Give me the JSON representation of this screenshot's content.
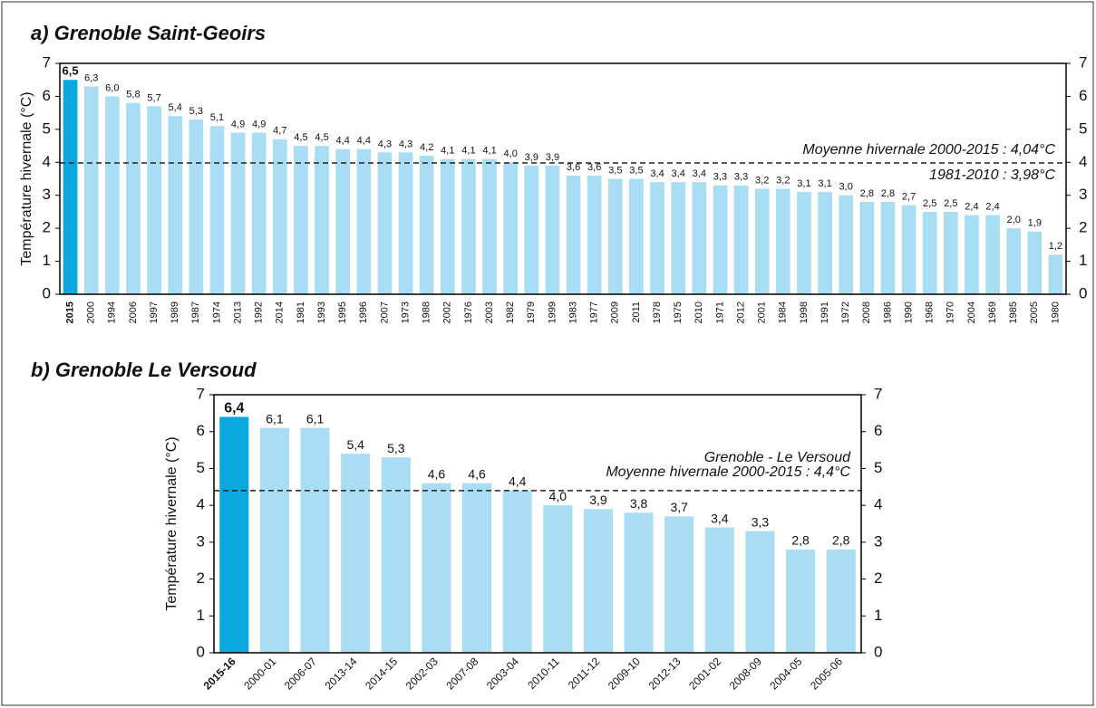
{
  "chart_data": [
    {
      "type": "bar",
      "title": "a) Grenoble Saint-Geoirs",
      "y_label": "Température hivernale (°C)",
      "categories": [
        "2015",
        "2000",
        "1994",
        "2006",
        "1997",
        "1989",
        "1987",
        "1974",
        "2013",
        "1992",
        "2014",
        "1981",
        "1993",
        "1995",
        "1996",
        "2007",
        "1973",
        "1988",
        "2002",
        "1976",
        "2003",
        "1982",
        "1979",
        "1999",
        "1983",
        "1977",
        "2009",
        "2011",
        "1978",
        "1975",
        "2010",
        "1971",
        "2012",
        "2001",
        "1984",
        "1998",
        "1991",
        "1972",
        "2008",
        "1986",
        "1990",
        "1968",
        "1970",
        "2004",
        "1969",
        "1985",
        "2005",
        "1980"
      ],
      "values": [
        6.5,
        6.3,
        6.0,
        5.8,
        5.7,
        5.4,
        5.3,
        5.1,
        4.9,
        4.9,
        4.7,
        4.5,
        4.5,
        4.4,
        4.4,
        4.3,
        4.3,
        4.2,
        4.1,
        4.1,
        4.1,
        4.0,
        3.9,
        3.9,
        3.6,
        3.6,
        3.5,
        3.5,
        3.4,
        3.4,
        3.4,
        3.3,
        3.3,
        3.2,
        3.2,
        3.1,
        3.1,
        3.0,
        2.8,
        2.8,
        2.7,
        2.5,
        2.5,
        2.4,
        2.4,
        2.0,
        1.9,
        1.2
      ],
      "value_labels": [
        "6,5",
        "6,3",
        "6,0",
        "5,8",
        "5,7",
        "5,4",
        "5,3",
        "5,1",
        "4,9",
        "4,9",
        "4,7",
        "4,5",
        "4,5",
        "4,4",
        "4,4",
        "4,3",
        "4,3",
        "4,2",
        "4,1",
        "4,1",
        "4,1",
        "4,0",
        "3,9",
        "3,9",
        "3,6",
        "3,6",
        "3,5",
        "3,5",
        "3,4",
        "3,4",
        "3,4",
        "3,3",
        "3,3",
        "3,2",
        "3,2",
        "3,1",
        "3,1",
        "3,0",
        "2,8",
        "2,8",
        "2,7",
        "2,5",
        "2,5",
        "2,4",
        "2,4",
        "2,0",
        "1,9",
        "1,2"
      ],
      "color": "#a9ddf3",
      "highlight_color": "#0aa7e1",
      "ylim": [
        0,
        7
      ],
      "yticks": [
        0,
        1,
        2,
        3,
        4,
        5,
        6,
        7
      ],
      "reference_line": 3.98,
      "annotations": [
        "Moyenne hivernale 2000-2015 : 4,04°C",
        "1981-2010 : 3,98°C"
      ]
    },
    {
      "type": "bar",
      "title": "b) Grenoble Le Versoud",
      "y_label": "Température hivernale (°C)",
      "categories": [
        "2015-16",
        "2000-01",
        "2006-07",
        "2013-14",
        "2014-15",
        "2002-03",
        "2007-08",
        "2003-04",
        "2010-11",
        "2011-12",
        "2009-10",
        "2012-13",
        "2001-02",
        "2008-09",
        "2004-05",
        "2005-06"
      ],
      "values": [
        6.4,
        6.1,
        6.1,
        5.4,
        5.3,
        4.6,
        4.6,
        4.4,
        4.0,
        3.9,
        3.8,
        3.7,
        3.4,
        3.3,
        2.8,
        2.8
      ],
      "value_labels": [
        "6,4",
        "6,1",
        "6,1",
        "5,4",
        "5,3",
        "4,6",
        "4,6",
        "4,4",
        "4,0",
        "3,9",
        "3,8",
        "3,7",
        "3,4",
        "3,3",
        "2,8",
        "2,8"
      ],
      "color": "#a9ddf3",
      "highlight_color": "#0aa7e1",
      "ylim": [
        0,
        7
      ],
      "yticks": [
        0,
        1,
        2,
        3,
        4,
        5,
        6,
        7
      ],
      "reference_line": 4.4,
      "annotations": [
        "Grenoble - Le Versoud",
        "Moyenne hivernale 2000-2015 : 4,4°C"
      ]
    }
  ]
}
